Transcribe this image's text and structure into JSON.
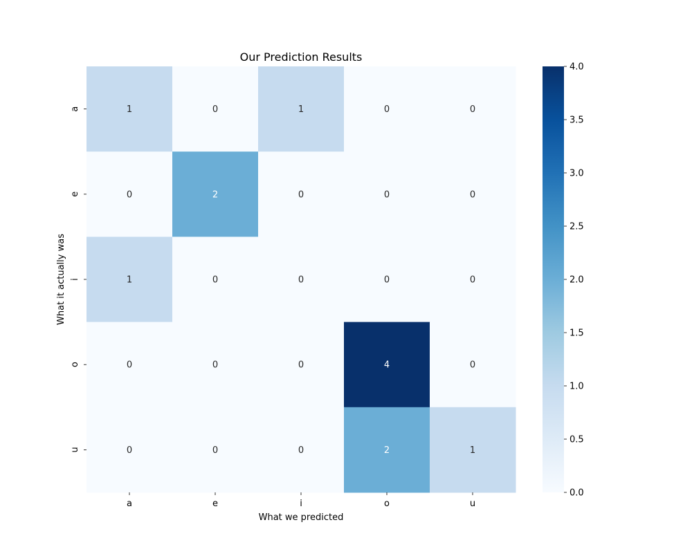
{
  "chart_data": {
    "type": "heatmap",
    "title": "Our Prediction Results",
    "xlabel": "What we predicted",
    "ylabel": "What it actually was",
    "x_categories": [
      "a",
      "e",
      "i",
      "o",
      "u"
    ],
    "y_categories": [
      "a",
      "e",
      "i",
      "o",
      "u"
    ],
    "values": [
      [
        1,
        0,
        1,
        0,
        0
      ],
      [
        0,
        2,
        0,
        0,
        0
      ],
      [
        1,
        0,
        0,
        0,
        0
      ],
      [
        0,
        0,
        0,
        4,
        0
      ],
      [
        0,
        0,
        0,
        2,
        1
      ]
    ],
    "colormap": "Blues",
    "vmin": 0,
    "vmax": 4,
    "colorbar_ticks": [
      "0.0",
      "0.5",
      "1.0",
      "1.5",
      "2.0",
      "2.5",
      "3.0",
      "3.5",
      "4.0"
    ],
    "annotated": true,
    "grid": false
  }
}
